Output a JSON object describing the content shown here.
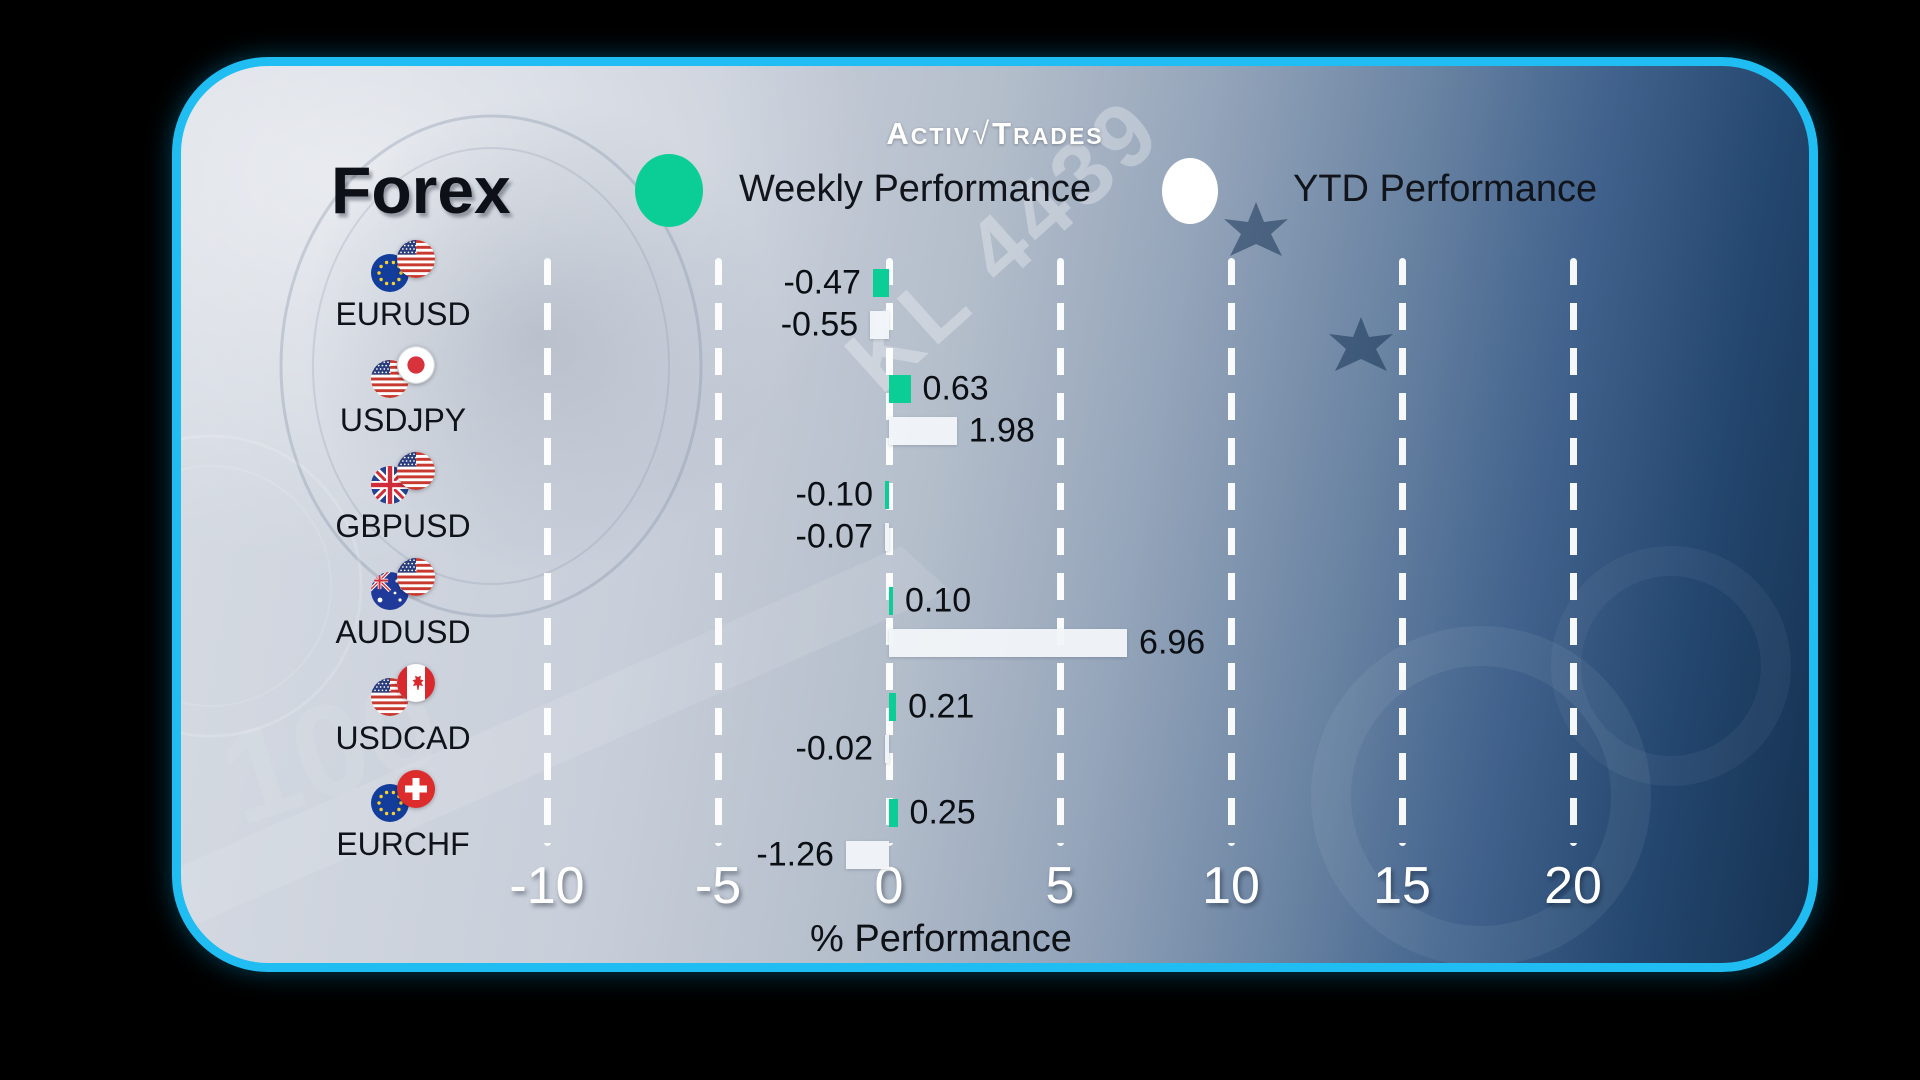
{
  "brand": {
    "name": "ActivTrades",
    "l1": "A",
    "l2": "CTIV",
    "check": "√",
    "l3": "T",
    "l4": "RADES"
  },
  "header": {
    "title": "Forex"
  },
  "legend": {
    "weekly_label": "Weekly Performance",
    "ytd_label": "YTD Performance"
  },
  "colors": {
    "weekly_green": "#0ace96",
    "ytd_white": "#f2f5f9",
    "border_cyan": "#1fbdf2",
    "text_dark": "#0d1117",
    "tick_white": "#ffffff"
  },
  "chart_data": {
    "type": "bar",
    "orientation": "horizontal",
    "title": "Forex",
    "xlabel": "% Performance",
    "x_ticks": [
      -10,
      -5,
      0,
      5,
      10,
      15,
      20
    ],
    "xlim": [
      -12.6,
      22.5
    ],
    "grid": "dashed-vertical-white",
    "legend_position": "top",
    "categories": [
      "EURUSD",
      "USDJPY",
      "GBPUSD",
      "AUDUSD",
      "USDCAD",
      "EURCHF"
    ],
    "flags": [
      [
        "eu-flag",
        "us-flag"
      ],
      [
        "us-flag",
        "jp-flag"
      ],
      [
        "gb-flag",
        "us-flag"
      ],
      [
        "au-flag",
        "us-flag"
      ],
      [
        "us-flag",
        "ca-flag"
      ],
      [
        "eu-flag",
        "ch-flag"
      ]
    ],
    "series": [
      {
        "name": "Weekly Performance",
        "color": "#0ace96",
        "values": [
          -0.47,
          0.63,
          -0.1,
          0.1,
          0.21,
          0.25
        ],
        "labels": [
          "-0.47",
          "0.63",
          "-0.10",
          "0.10",
          "0.21",
          "0.25"
        ]
      },
      {
        "name": "YTD Performance",
        "color": "#f2f5f9",
        "values": [
          -0.55,
          1.98,
          -0.07,
          6.96,
          -0.02,
          -1.26
        ],
        "labels": [
          "-0.55",
          "1.98",
          "-0.07",
          "6.96",
          "-0.02",
          "-1.26"
        ]
      }
    ]
  }
}
